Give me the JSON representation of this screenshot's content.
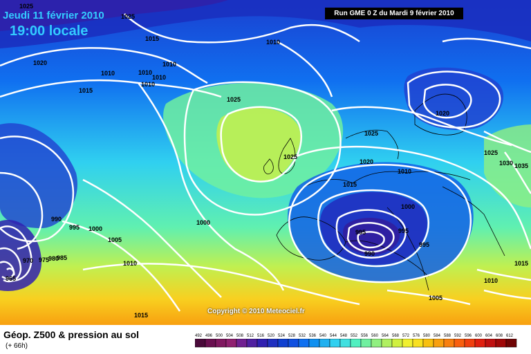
{
  "header": {
    "date": "Jeudi 11 février 2010",
    "time": "19:00 locale",
    "run": "Run GME 0 Z du Mardi 9 février 2010"
  },
  "footer": {
    "title": "Géop. Z500 & pression au sol",
    "subtitle": "(+ 66h)",
    "copyright": "Copyright © 2010 Meteociel.fr"
  },
  "scale": {
    "labels": [
      "492",
      "496",
      "500",
      "504",
      "508",
      "512",
      "516",
      "520",
      "524",
      "528",
      "532",
      "536",
      "540",
      "544",
      "548",
      "552",
      "556",
      "560",
      "564",
      "568",
      "572",
      "576",
      "580",
      "584",
      "588",
      "592",
      "596",
      "600",
      "604",
      "608",
      "612"
    ],
    "colors": [
      "#4a0a3a",
      "#6a1050",
      "#801860",
      "#902070",
      "#702090",
      "#5020a0",
      "#3020b0",
      "#2030c0",
      "#1040d0",
      "#1050e0",
      "#1070f0",
      "#1090f0",
      "#20b0f0",
      "#30d0f0",
      "#40e0e0",
      "#50f0c0",
      "#70f0a0",
      "#90f080",
      "#b0f060",
      "#d0f040",
      "#f0f030",
      "#f8e020",
      "#f8c010",
      "#f8a010",
      "#f88010",
      "#f86010",
      "#f04010",
      "#e02010",
      "#c01010",
      "#a00808",
      "#700404"
    ]
  },
  "isobars": [
    {
      "value": "1025",
      "id": "l1"
    },
    {
      "value": "1025",
      "id": "l2"
    },
    {
      "value": "1015",
      "id": "l3"
    },
    {
      "value": "1010",
      "id": "l4"
    },
    {
      "value": "1020",
      "id": "l5"
    },
    {
      "value": "1010",
      "id": "l6"
    },
    {
      "value": "1010",
      "id": "l7"
    },
    {
      "value": "1010",
      "id": "l8"
    },
    {
      "value": "1010",
      "id": "l9"
    },
    {
      "value": "1010",
      "id": "l10"
    },
    {
      "value": "1015",
      "id": "l11"
    },
    {
      "value": "1025",
      "id": "l12"
    },
    {
      "value": "1020",
      "id": "l13"
    },
    {
      "value": "1025",
      "id": "l14"
    },
    {
      "value": "1025",
      "id": "l15"
    },
    {
      "value": "1020",
      "id": "l16"
    },
    {
      "value": "1010",
      "id": "l17"
    },
    {
      "value": "1025",
      "id": "l18"
    },
    {
      "value": "1030",
      "id": "l19"
    },
    {
      "value": "1035",
      "id": "l20"
    },
    {
      "value": "1015",
      "id": "l21"
    },
    {
      "value": "1000",
      "id": "l22"
    },
    {
      "value": "990",
      "id": "l23"
    },
    {
      "value": "995",
      "id": "l24"
    },
    {
      "value": "1000",
      "id": "l25"
    },
    {
      "value": "1005",
      "id": "l26"
    },
    {
      "value": "1000",
      "id": "l27"
    },
    {
      "value": "995",
      "id": "l28"
    },
    {
      "value": "995",
      "id": "l29"
    },
    {
      "value": "990",
      "id": "l30"
    },
    {
      "value": "995",
      "id": "l31"
    },
    {
      "value": "970",
      "id": "l32"
    },
    {
      "value": "975",
      "id": "l33"
    },
    {
      "value": "980",
      "id": "l34"
    },
    {
      "value": "985",
      "id": "l35"
    },
    {
      "value": "965",
      "id": "l36"
    },
    {
      "value": "1010",
      "id": "l37"
    },
    {
      "value": "1010",
      "id": "l38"
    },
    {
      "value": "1005",
      "id": "l39"
    },
    {
      "value": "1015",
      "id": "l40"
    },
    {
      "value": "1015",
      "id": "l41"
    }
  ]
}
